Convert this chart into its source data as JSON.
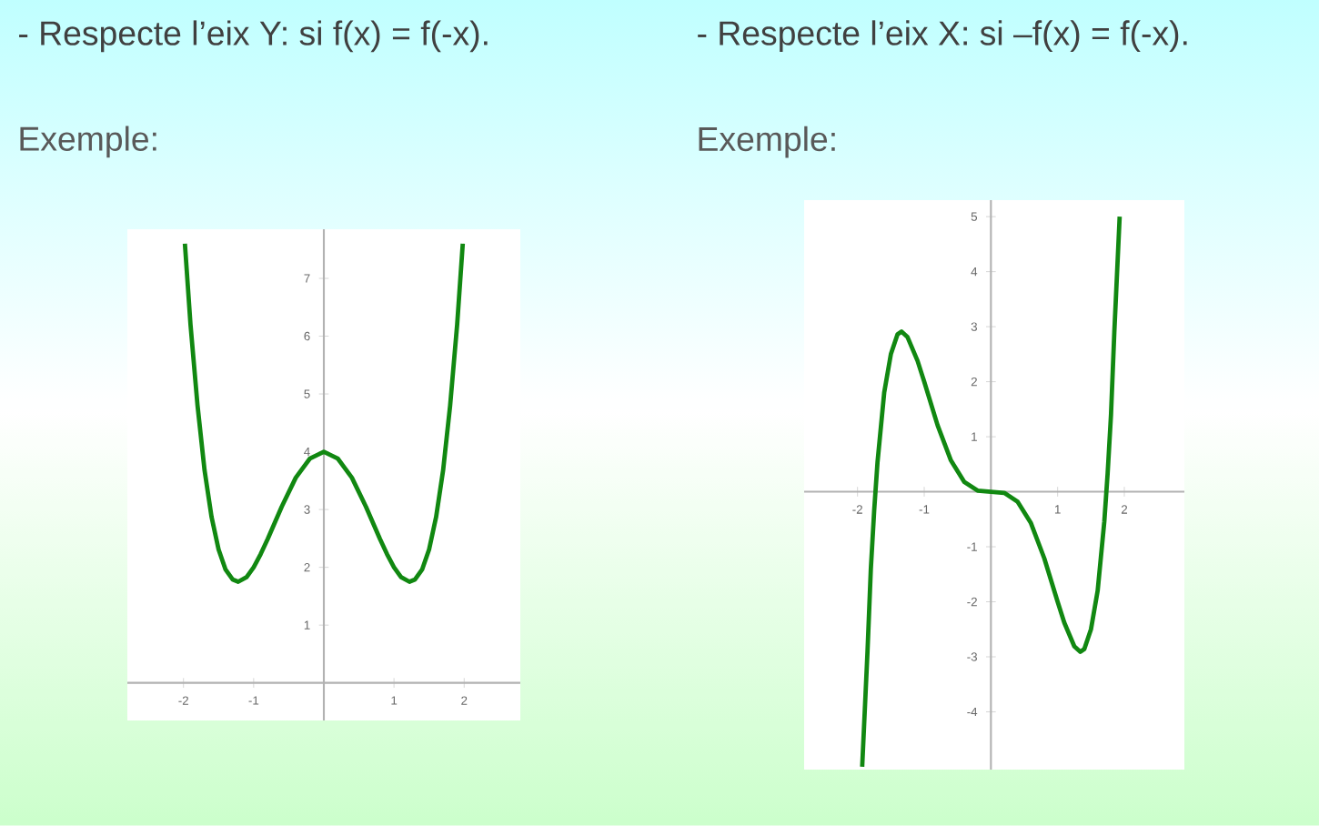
{
  "chart_data": [
    {
      "type": "line",
      "title": "- Respecte l’eix Y: si f(x) = f(-x).",
      "subtitle": "Exemple:",
      "color": "#118811",
      "x": [
        -1.98,
        -1.9,
        -1.8,
        -1.7,
        -1.6,
        -1.5,
        -1.4,
        -1.3,
        -1.22,
        -1.1,
        -1.0,
        -0.9,
        -0.8,
        -0.6,
        -0.4,
        -0.2,
        0,
        0.2,
        0.4,
        0.6,
        0.8,
        0.9,
        1.0,
        1.1,
        1.22,
        1.3,
        1.4,
        1.5,
        1.6,
        1.7,
        1.8,
        1.9,
        1.98
      ],
      "values": [
        7.6,
        6.2,
        4.8,
        3.68,
        2.87,
        2.31,
        1.96,
        1.79,
        1.75,
        1.83,
        2.0,
        2.23,
        2.49,
        3.05,
        3.55,
        3.88,
        4,
        3.88,
        3.55,
        3.05,
        2.49,
        2.23,
        2.0,
        1.83,
        1.75,
        1.79,
        1.96,
        2.31,
        2.87,
        3.68,
        4.8,
        6.2,
        7.6
      ],
      "xlim": [
        -2.8,
        2.8
      ],
      "ylim": [
        -0.65,
        7.85
      ],
      "xticks": [
        -2,
        -1,
        1,
        2
      ],
      "yticks": [
        1,
        2,
        3,
        4,
        5,
        6,
        7
      ]
    },
    {
      "type": "line",
      "title": "- Respecte l’eix X: si –f(x) = f(-x).",
      "subtitle": "Exemple:",
      "color": "#118811",
      "x": [
        -1.93,
        -1.85,
        -1.8,
        -1.75,
        -1.7,
        -1.6,
        -1.5,
        -1.4,
        -1.34,
        -1.25,
        -1.1,
        -1.0,
        -0.8,
        -0.6,
        -0.4,
        -0.2,
        0,
        0.2,
        0.4,
        0.6,
        0.8,
        1.0,
        1.1,
        1.25,
        1.34,
        1.4,
        1.5,
        1.6,
        1.7,
        1.75,
        1.8,
        1.85,
        1.93
      ],
      "values": [
        -5.0,
        -2.9,
        -1.4,
        -0.34,
        0.54,
        1.8,
        2.5,
        2.86,
        2.91,
        2.81,
        2.38,
        2.0,
        1.21,
        0.57,
        0.18,
        0.02,
        0,
        -0.02,
        -0.18,
        -0.57,
        -1.21,
        -2.0,
        -2.38,
        -2.81,
        -2.91,
        -2.86,
        -2.5,
        -1.8,
        -0.54,
        0.34,
        1.4,
        2.9,
        5.0
      ],
      "xlim": [
        -2.8,
        2.9
      ],
      "ylim": [
        -5.05,
        5.3
      ],
      "xticks": [
        -2,
        -1,
        1,
        2
      ],
      "yticks": [
        -4,
        -3,
        -2,
        -1,
        1,
        2,
        3,
        4,
        5
      ]
    }
  ]
}
